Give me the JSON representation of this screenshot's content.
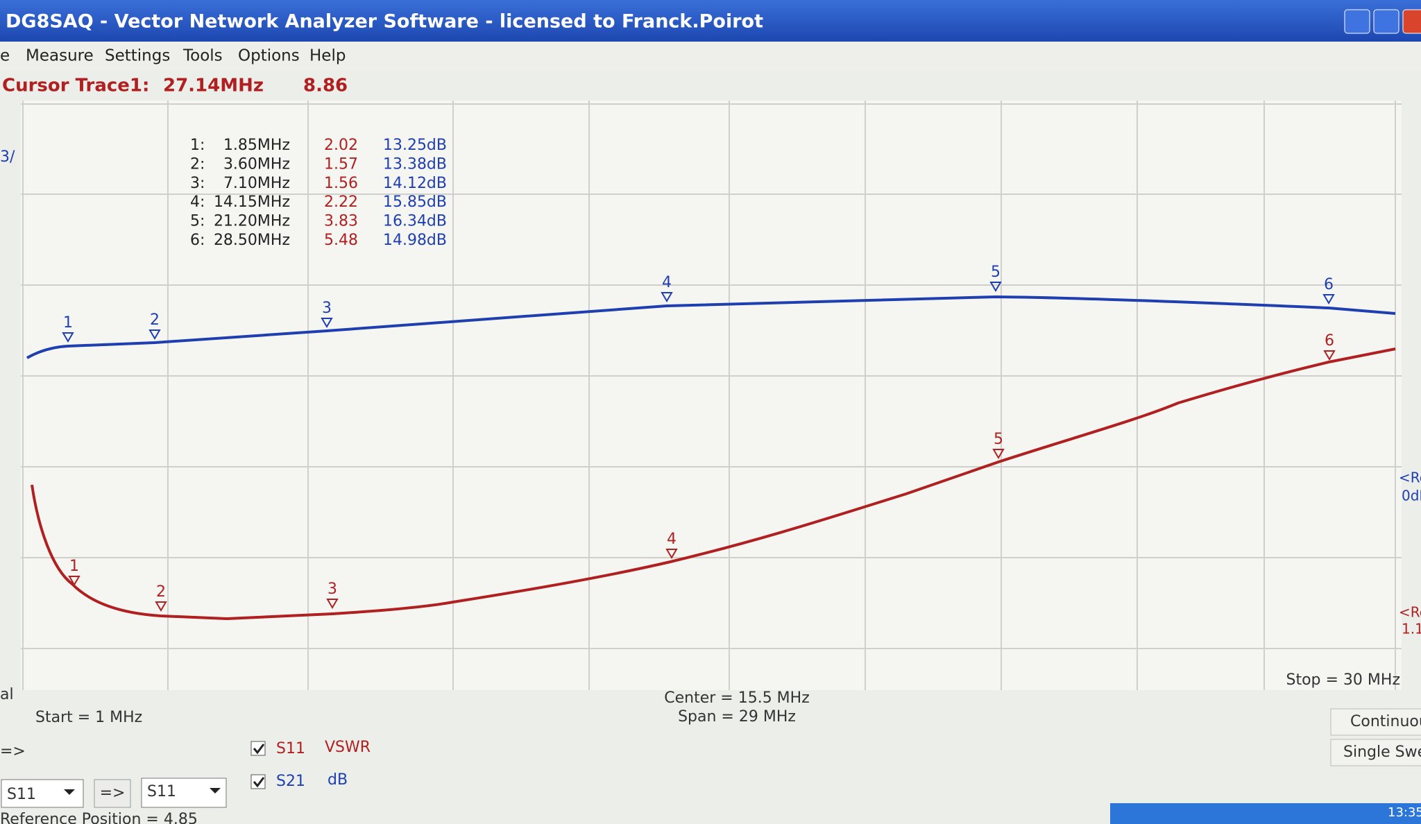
{
  "window": {
    "title": "DG8SAQ  -  Vector Network Analyzer Software  -  licensed to Franck.Poirot"
  },
  "menu": [
    "e",
    "Measure",
    "Settings",
    "Tools",
    "Options",
    "Help"
  ],
  "cursor": {
    "label": "Cursor Trace1:",
    "frequency": "27.14MHz",
    "value": "8.86"
  },
  "markers": [
    {
      "label": "1:",
      "frequency": "1.85MHz",
      "vswr": "2.02",
      "s21": "13.25dB"
    },
    {
      "label": "2:",
      "frequency": "3.60MHz",
      "vswr": "1.57",
      "s21": "13.38dB"
    },
    {
      "label": "3:",
      "frequency": "7.10MHz",
      "vswr": "1.56",
      "s21": "14.12dB"
    },
    {
      "label": "4:",
      "frequency": "14.15MHz",
      "vswr": "2.22",
      "s21": "15.85dB"
    },
    {
      "label": "5:",
      "frequency": "21.20MHz",
      "vswr": "3.83",
      "s21": "16.34dB"
    },
    {
      "label": "6:",
      "frequency": "28.50MHz",
      "vswr": "5.48",
      "s21": "14.98dB"
    }
  ],
  "trace_marker_labels": [
    "1",
    "2",
    "3",
    "4",
    "5",
    "6"
  ],
  "axis_labels": {
    "left": "3/",
    "right_upper": [
      "<Re",
      "0dB"
    ],
    "right_lower": [
      "<Re",
      "1.1"
    ]
  },
  "sweep": {
    "start": "Start = 1 MHz",
    "center": "Center = 15.5 MHz",
    "span": "Span = 29 MHz",
    "stop": "Stop = 30 MHz"
  },
  "cal": "al",
  "left_arrow": "=>",
  "traces": [
    {
      "param": "S11",
      "format": "VSWR"
    },
    {
      "param": "S21",
      "format": "dB"
    }
  ],
  "selectors": [
    "S11",
    "=>",
    "S11"
  ],
  "buttons": [
    "Continuous",
    "Single Swee"
  ],
  "status": "Reference Position = 4.85",
  "clock": "13:35"
}
